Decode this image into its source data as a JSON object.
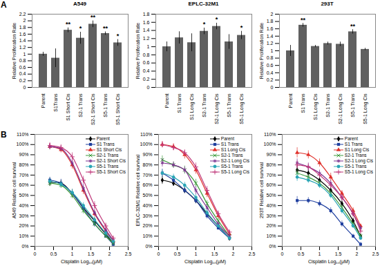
{
  "panel_labels": [
    "A",
    "B"
  ],
  "chart_data": [
    {
      "type": "bar",
      "title": "A549",
      "ylabel": "Relative Proliferation Rate",
      "categories": [
        "Parent",
        "S1Trans",
        "S1 Short Cis",
        "S2-1 Trans",
        "S2-1 Short Cis",
        "S5-1 Trans",
        "S5-1 Short Cis"
      ],
      "values": [
        1.0,
        0.88,
        1.72,
        1.48,
        1.9,
        1.62,
        1.34
      ],
      "errors": [
        0.06,
        0.28,
        0.07,
        0.18,
        0.1,
        0.05,
        0.1
      ],
      "significance": [
        null,
        null,
        "**",
        "*",
        "**",
        "**",
        "*"
      ],
      "color": "#606060",
      "grid": false,
      "ylim": [
        0,
        2.2
      ],
      "yticks": [
        0,
        0.2,
        0.4,
        0.6,
        0.8,
        1,
        1.2,
        1.4,
        1.6,
        1.8,
        2,
        2.2
      ]
    },
    {
      "type": "bar",
      "title": "EPLC-32M1",
      "ylabel": "Relative Proliferation Rate",
      "categories": [
        "Parent",
        "S1 Trans",
        "S1 Long Cis",
        "S2-1 Trans",
        "S2-1 Long Cis",
        "S5-1 Trans",
        "S5-1 Long Cis"
      ],
      "values": [
        1.0,
        1.22,
        1.1,
        1.38,
        1.5,
        1.12,
        1.28
      ],
      "errors": [
        0.12,
        0.15,
        0.22,
        0.08,
        0.08,
        0.18,
        0.1
      ],
      "significance": [
        null,
        null,
        null,
        "*",
        "*",
        null,
        "*"
      ],
      "color": "#606060",
      "grid": false,
      "ylim": [
        0,
        1.8
      ],
      "yticks": [
        0,
        0.2,
        0.4,
        0.6,
        0.8,
        1,
        1.2,
        1.4,
        1.6,
        1.8
      ]
    },
    {
      "type": "bar",
      "title": "293T",
      "ylabel": "Relative Proliferation Rate",
      "categories": [
        "Parent",
        "S1 Trans",
        "S1 Long Cis",
        "S2-1 Trans",
        "S2-1 Long Cis",
        "S5-1 Trans",
        "S5-1 Long Cis"
      ],
      "values": [
        1.0,
        1.7,
        1.12,
        1.2,
        1.18,
        1.52,
        1.04
      ],
      "errors": [
        0.15,
        0.05,
        0.03,
        0.04,
        0.06,
        0.06,
        0.03
      ],
      "significance": [
        null,
        "**",
        null,
        null,
        null,
        "**",
        null
      ],
      "color": "#606060",
      "grid": false,
      "ylim": [
        0,
        2
      ],
      "yticks": [
        0,
        0.2,
        0.4,
        0.6,
        0.8,
        1,
        1.2,
        1.4,
        1.6,
        1.8,
        2
      ]
    },
    {
      "type": "line",
      "xlabel": "Cisplatin Log₁₀(μM)",
      "ylabel": "A549 Relative cell survival",
      "legend": "top-right",
      "grid": false,
      "xlim": [
        0,
        2.5
      ],
      "xticks": [
        0,
        0.5,
        1,
        1.5,
        2,
        2.5
      ],
      "ylim": [
        0,
        110
      ],
      "yticks": [
        {
          "value": 0,
          "label": "0%"
        },
        {
          "value": 10,
          "label": "10%"
        },
        {
          "value": 20,
          "label": "20%"
        },
        {
          "value": 30,
          "label": "30%"
        },
        {
          "value": 40,
          "label": "40%"
        },
        {
          "value": 50,
          "label": "50%"
        },
        {
          "value": 60,
          "label": "60%"
        },
        {
          "value": 70,
          "label": "70%"
        },
        {
          "value": 80,
          "label": "80%"
        },
        {
          "value": 90,
          "label": "90%"
        },
        {
          "value": 100,
          "label": "100%"
        },
        {
          "value": 110,
          "label": "110%"
        }
      ],
      "x": [
        0.4,
        0.7,
        1.0,
        1.3,
        1.6,
        1.9,
        2.1
      ],
      "series": [
        {
          "name": "Parent",
          "color": "#000000",
          "marker": "diamond",
          "values": [
            63,
            62,
            52,
            38,
            25,
            12,
            3
          ],
          "errors": [
            4,
            3,
            4,
            3,
            3,
            2,
            2
          ]
        },
        {
          "name": "S1 Trans",
          "color": "#1f3f9f",
          "marker": "square",
          "values": [
            65,
            62,
            52,
            37,
            22,
            10,
            2
          ],
          "errors": [
            3,
            4,
            3,
            3,
            3,
            2,
            2
          ]
        },
        {
          "name": "S1 Short Cis",
          "color": "#e0302a",
          "marker": "triangle",
          "values": [
            98,
            95,
            80,
            55,
            32,
            15,
            5
          ],
          "errors": [
            3,
            3,
            4,
            4,
            3,
            3,
            2
          ]
        },
        {
          "name": "S2-1 Trans",
          "color": "#3a9a3a",
          "marker": "times",
          "values": [
            62,
            60,
            50,
            35,
            22,
            10,
            3
          ],
          "errors": [
            3,
            3,
            3,
            3,
            2,
            2,
            2
          ]
        },
        {
          "name": "S2-1 Short Cis",
          "color": "#7a2f8f",
          "marker": "asterisk",
          "values": [
            98,
            96,
            82,
            57,
            33,
            16,
            6
          ],
          "errors": [
            3,
            3,
            4,
            4,
            3,
            2,
            2
          ]
        },
        {
          "name": "S5-1 Trans",
          "color": "#2aa5b5",
          "marker": "circle",
          "values": [
            64,
            61,
            53,
            40,
            26,
            13,
            5
          ],
          "errors": [
            3,
            3,
            3,
            3,
            3,
            2,
            2
          ]
        },
        {
          "name": "S5-1 Short Cis",
          "color": "#c0387a",
          "marker": "plus",
          "values": [
            99,
            97,
            88,
            65,
            40,
            20,
            8
          ],
          "errors": [
            3,
            3,
            4,
            4,
            4,
            3,
            2
          ]
        }
      ]
    },
    {
      "type": "line",
      "xlabel": "Cisplatin Log₁₀(μM)",
      "ylabel": "EPLC-32M1 Relative cell survival",
      "legend": "top-right",
      "grid": false,
      "xlim": [
        0,
        2.5
      ],
      "xticks": [
        0,
        0.5,
        1,
        1.5,
        2,
        2.5
      ],
      "ylim": [
        0,
        110
      ],
      "yticks": [
        {
          "value": 0,
          "label": "0%"
        },
        {
          "value": 10,
          "label": "10%"
        },
        {
          "value": 20,
          "label": "20%"
        },
        {
          "value": 30,
          "label": "30%"
        },
        {
          "value": 40,
          "label": "40%"
        },
        {
          "value": 50,
          "label": "50%"
        },
        {
          "value": 60,
          "label": "60%"
        },
        {
          "value": 70,
          "label": "70%"
        },
        {
          "value": 80,
          "label": "80%"
        },
        {
          "value": 90,
          "label": "90%"
        },
        {
          "value": 100,
          "label": "100%"
        },
        {
          "value": 110,
          "label": "110%"
        }
      ],
      "x": [
        0.1,
        0.4,
        0.7,
        1.0,
        1.3,
        1.6,
        1.9
      ],
      "series": [
        {
          "name": "Parent",
          "color": "#000000",
          "marker": "diamond",
          "values": [
            65,
            62,
            55,
            45,
            32,
            20,
            8
          ],
          "errors": [
            4,
            3,
            3,
            3,
            3,
            2,
            2
          ]
        },
        {
          "name": "S1 Trans",
          "color": "#1f3f9f",
          "marker": "square",
          "values": [
            72,
            65,
            55,
            45,
            30,
            18,
            8
          ],
          "errors": [
            4,
            3,
            3,
            3,
            3,
            2,
            2
          ]
        },
        {
          "name": "S1 Long Cis",
          "color": "#e0302a",
          "marker": "triangle",
          "values": [
            100,
            98,
            90,
            75,
            52,
            30,
            12
          ],
          "errors": [
            3,
            3,
            4,
            4,
            4,
            3,
            2
          ]
        },
        {
          "name": "S2-1 Trans",
          "color": "#3a9a3a",
          "marker": "times",
          "values": [
            85,
            80,
            75,
            62,
            42,
            25,
            10
          ],
          "errors": [
            4,
            3,
            4,
            4,
            3,
            3,
            2
          ]
        },
        {
          "name": "S2-1 Long Cis",
          "color": "#7a2f8f",
          "marker": "asterisk",
          "values": [
            82,
            80,
            75,
            55,
            38,
            22,
            10
          ],
          "errors": [
            4,
            3,
            3,
            4,
            3,
            3,
            2
          ]
        },
        {
          "name": "S5-1 Trans",
          "color": "#2aa5b5",
          "marker": "circle",
          "values": [
            72,
            68,
            60,
            48,
            33,
            20,
            8
          ],
          "errors": [
            3,
            3,
            3,
            3,
            3,
            2,
            2
          ]
        },
        {
          "name": "S5-1 Long Cis",
          "color": "#c0387a",
          "marker": "plus",
          "values": [
            100,
            97,
            92,
            78,
            55,
            32,
            14
          ],
          "errors": [
            3,
            3,
            3,
            4,
            4,
            3,
            2
          ]
        }
      ]
    },
    {
      "type": "line",
      "xlabel": "Cisplatin Log₁₀(μM)",
      "ylabel": "293T Relative cell survival",
      "legend": "top-right",
      "grid": false,
      "xlim": [
        0,
        2.5
      ],
      "xticks": [
        0,
        0.5,
        1,
        1.5,
        2,
        2.5
      ],
      "ylim": [
        0,
        110
      ],
      "yticks": [
        {
          "value": 0,
          "label": "0%"
        },
        {
          "value": 10,
          "label": "10%"
        },
        {
          "value": 20,
          "label": "20%"
        },
        {
          "value": 30,
          "label": "30%"
        },
        {
          "value": 40,
          "label": "40%"
        },
        {
          "value": 50,
          "label": "50%"
        },
        {
          "value": 60,
          "label": "60%"
        },
        {
          "value": 70,
          "label": "70%"
        },
        {
          "value": 80,
          "label": "80%"
        },
        {
          "value": 90,
          "label": "90%"
        },
        {
          "value": 100,
          "label": "100%"
        },
        {
          "value": 110,
          "label": "110%"
        }
      ],
      "x": [
        0.4,
        0.7,
        1.0,
        1.3,
        1.6,
        1.9,
        2.1
      ],
      "series": [
        {
          "name": "Parent",
          "color": "#000000",
          "marker": "diamond",
          "values": [
            75,
            72,
            65,
            55,
            42,
            25,
            10
          ],
          "errors": [
            4,
            4,
            3,
            3,
            3,
            3,
            2
          ]
        },
        {
          "name": "S1 Trans",
          "color": "#1f3f9f",
          "marker": "square",
          "values": [
            45,
            45,
            42,
            35,
            22,
            10,
            2
          ],
          "errors": [
            4,
            3,
            3,
            3,
            3,
            2,
            2
          ]
        },
        {
          "name": "S1 Long Cis",
          "color": "#e0302a",
          "marker": "triangle",
          "values": [
            92,
            90,
            82,
            68,
            52,
            35,
            20
          ],
          "errors": [
            5,
            4,
            4,
            4,
            3,
            3,
            2
          ]
        },
        {
          "name": "S2-1 Trans",
          "color": "#3a9a3a",
          "marker": "times",
          "values": [
            72,
            68,
            62,
            52,
            38,
            22,
            10
          ],
          "errors": [
            4,
            3,
            3,
            3,
            3,
            2,
            2
          ]
        },
        {
          "name": "S2-1 Long Cis",
          "color": "#7a2f8f",
          "marker": "asterisk",
          "values": [
            82,
            78,
            72,
            62,
            48,
            32,
            18
          ],
          "errors": [
            4,
            4,
            3,
            3,
            3,
            3,
            2
          ]
        },
        {
          "name": "S5-1 Trans",
          "color": "#2aa5b5",
          "marker": "circle",
          "values": [
            68,
            65,
            60,
            50,
            35,
            20,
            8
          ],
          "errors": [
            4,
            3,
            3,
            3,
            3,
            2,
            2
          ]
        },
        {
          "name": "S5-1 Long Cis",
          "color": "#c0387a",
          "marker": "plus",
          "values": [
            80,
            78,
            70,
            60,
            48,
            32,
            15
          ],
          "errors": [
            4,
            3,
            3,
            3,
            3,
            3,
            2
          ]
        }
      ]
    }
  ]
}
